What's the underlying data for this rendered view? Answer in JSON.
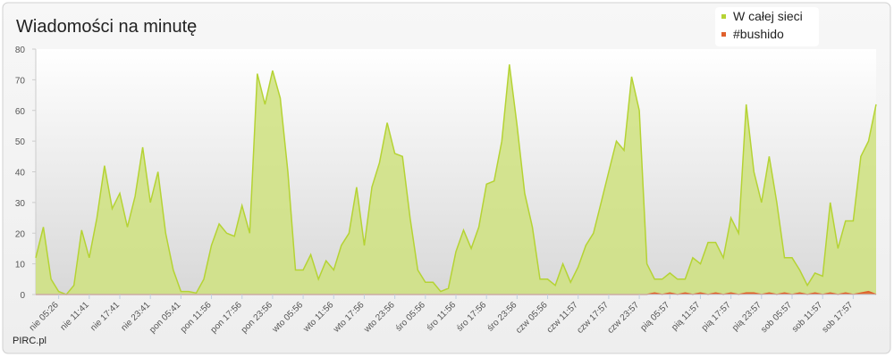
{
  "chart_data": {
    "type": "area",
    "title": "Wiadomości na minutę",
    "credit": "PIRC.pl",
    "categories": [
      null,
      null,
      null,
      "nie 05:26",
      null,
      null,
      null,
      "nie 11:41",
      null,
      null,
      null,
      "nie 17:41",
      null,
      null,
      null,
      "nie 23:41",
      null,
      null,
      null,
      "pon 05:41",
      null,
      null,
      null,
      "pon 11:56",
      null,
      null,
      null,
      "pon 17:56",
      null,
      null,
      null,
      "pon 23:56",
      null,
      null,
      null,
      "wto 05:56",
      null,
      null,
      null,
      "wto 11:56",
      null,
      null,
      null,
      "wto 17:56",
      null,
      null,
      null,
      "wto 23:56",
      null,
      null,
      null,
      "śro 05:56",
      null,
      null,
      null,
      "śro 11:56",
      null,
      null,
      null,
      "śro 17:56",
      null,
      null,
      null,
      "śro 23:56",
      null,
      null,
      null,
      "czw 05:56",
      null,
      null,
      null,
      "czw 11:57",
      null,
      null,
      null,
      "czw 17:57",
      null,
      null,
      null,
      "czw 23:57",
      null,
      null,
      null,
      "pią 05:57",
      null,
      null,
      null,
      "pią 11:57",
      null,
      null,
      null,
      "pią 17:57",
      null,
      null,
      null,
      "pią 23:57",
      null,
      null,
      null,
      "sob 05:57",
      null,
      null,
      null,
      "sob 11:57",
      null,
      null,
      null,
      "sob 17:57",
      null,
      null,
      null
    ],
    "series": [
      {
        "name": "W całej sieci",
        "color": "#b5d334",
        "fill": "#cfe27f",
        "values": [
          12,
          22,
          5,
          1,
          0,
          3,
          21,
          12,
          25,
          42,
          28,
          33,
          22,
          32,
          48,
          30,
          40,
          20,
          8,
          1,
          1,
          0.5,
          5,
          16,
          23,
          20,
          19,
          29,
          20,
          72,
          62,
          73,
          64,
          40,
          8,
          8,
          13,
          5,
          11,
          8,
          16,
          20,
          35,
          16,
          35,
          43,
          56,
          46,
          45,
          25,
          8,
          4,
          4,
          1,
          2,
          14,
          21,
          15,
          22,
          36,
          37,
          50,
          75,
          55,
          33,
          22,
          5,
          5,
          3,
          10,
          4,
          9,
          16,
          20,
          30,
          40,
          50,
          47,
          71,
          60,
          10,
          5,
          5,
          7,
          5,
          5,
          12,
          10,
          17,
          17,
          12,
          25,
          20,
          62,
          40,
          30,
          45,
          30,
          12,
          12,
          8,
          3,
          7,
          6,
          30,
          15,
          24,
          24,
          45,
          50,
          62
        ]
      },
      {
        "name": "#bushido",
        "color": "#e0602c",
        "fill": "#e0602c",
        "values": [
          0,
          0,
          0,
          0,
          0,
          0,
          0,
          0,
          0,
          0,
          0,
          0,
          0,
          0,
          0,
          0,
          0,
          0,
          0,
          0,
          0,
          0,
          0,
          0,
          0,
          0,
          0,
          0,
          0,
          0,
          0,
          0,
          0,
          0,
          0,
          0,
          0,
          0,
          0,
          0,
          0,
          0,
          0,
          0,
          0,
          0,
          0,
          0,
          0,
          0,
          0,
          0,
          0,
          0,
          0,
          0,
          0,
          0,
          0,
          0,
          0,
          0,
          0,
          0,
          0,
          0,
          0,
          0,
          0,
          0,
          0,
          0,
          0,
          0,
          0,
          0,
          0,
          0,
          0,
          0,
          0,
          0.5,
          0,
          0.5,
          0,
          0.5,
          0,
          0.5,
          0,
          0.5,
          0,
          0.5,
          0,
          0.5,
          0.5,
          0,
          0.5,
          0,
          0.5,
          0,
          0.5,
          0,
          0.5,
          0,
          0.5,
          0,
          0.5,
          0,
          0.5,
          1,
          0
        ]
      }
    ],
    "ylim": [
      0,
      80
    ],
    "yticks": [
      0,
      10,
      20,
      30,
      40,
      50,
      60,
      70,
      80
    ],
    "grid": false,
    "legend": "top-right"
  }
}
